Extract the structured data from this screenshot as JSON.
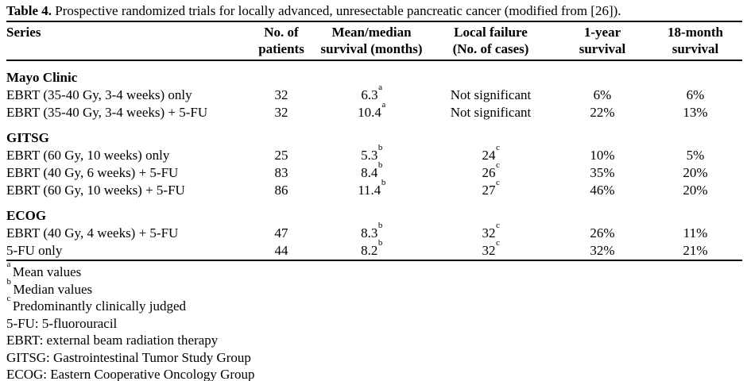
{
  "colors": {
    "text": "#000000",
    "background": "#ffffff",
    "rule": "#000000"
  },
  "caption": {
    "label": "Table 4.",
    "text": " Prospective randomized trials for locally advanced, unresectable pancreatic cancer (modified from [26])."
  },
  "table": {
    "columns": [
      {
        "key": "series",
        "lines": [
          "Series",
          ""
        ]
      },
      {
        "key": "patients",
        "lines": [
          "No. of",
          "patients"
        ]
      },
      {
        "key": "survival",
        "lines": [
          "Mean/median",
          "survival (months)"
        ]
      },
      {
        "key": "failure",
        "lines": [
          "Local failure",
          "(No. of cases)"
        ]
      },
      {
        "key": "year1",
        "lines": [
          "1-year",
          "survival"
        ]
      },
      {
        "key": "month18",
        "lines": [
          "18-month",
          "survival"
        ]
      }
    ],
    "groups": [
      {
        "name": "Mayo Clinic",
        "rows": [
          {
            "series": "EBRT (35-40 Gy, 3-4 weeks) only",
            "patients": "32",
            "survival": "6.3",
            "survival_note": "a",
            "local_failure": "Not significant",
            "failure_note": "",
            "one_year": "6%",
            "eighteen_month": "6%"
          },
          {
            "series": "EBRT (35-40 Gy, 3-4 weeks) + 5-FU",
            "patients": "32",
            "survival": "10.4",
            "survival_note": "a",
            "local_failure": "Not significant",
            "failure_note": "",
            "one_year": "22%",
            "eighteen_month": "13%"
          }
        ]
      },
      {
        "name": "GITSG",
        "rows": [
          {
            "series": "EBRT (60 Gy, 10 weeks) only",
            "patients": "25",
            "survival": "5.3",
            "survival_note": "b",
            "local_failure": "24",
            "failure_note": "c",
            "one_year": "10%",
            "eighteen_month": "5%"
          },
          {
            "series": "EBRT (40 Gy, 6 weeks) + 5-FU",
            "patients": "83",
            "survival": "8.4",
            "survival_note": "b",
            "local_failure": "26",
            "failure_note": "c",
            "one_year": "35%",
            "eighteen_month": "20%"
          },
          {
            "series": "EBRT (60 Gy, 10 weeks) + 5-FU",
            "patients": "86",
            "survival": "11.4",
            "survival_note": "b",
            "local_failure": "27",
            "failure_note": "c",
            "one_year": "46%",
            "eighteen_month": "20%"
          }
        ]
      },
      {
        "name": "ECOG",
        "rows": [
          {
            "series": "EBRT (40 Gy, 4 weeks) + 5-FU",
            "patients": "47",
            "survival": "8.3",
            "survival_note": "b",
            "local_failure": "32",
            "failure_note": "c",
            "one_year": "26%",
            "eighteen_month": "11%"
          },
          {
            "series": "5-FU only",
            "patients": "44",
            "survival": "8.2",
            "survival_note": "b",
            "local_failure": "32",
            "failure_note": "c",
            "one_year": "32%",
            "eighteen_month": "21%"
          }
        ]
      }
    ]
  },
  "footnotes": [
    {
      "sup": "a",
      "text": "Mean values"
    },
    {
      "sup": "b",
      "text": "Median values"
    },
    {
      "sup": "c",
      "text": "Predominantly clinically judged"
    },
    {
      "sup": "",
      "text": "5-FU: 5-fluorouracil"
    },
    {
      "sup": "",
      "text": "EBRT: external beam radiation therapy"
    },
    {
      "sup": "",
      "text": "GITSG: Gastrointestinal Tumor Study Group"
    },
    {
      "sup": "",
      "text": "ECOG: Eastern Cooperative Oncology Group"
    }
  ]
}
